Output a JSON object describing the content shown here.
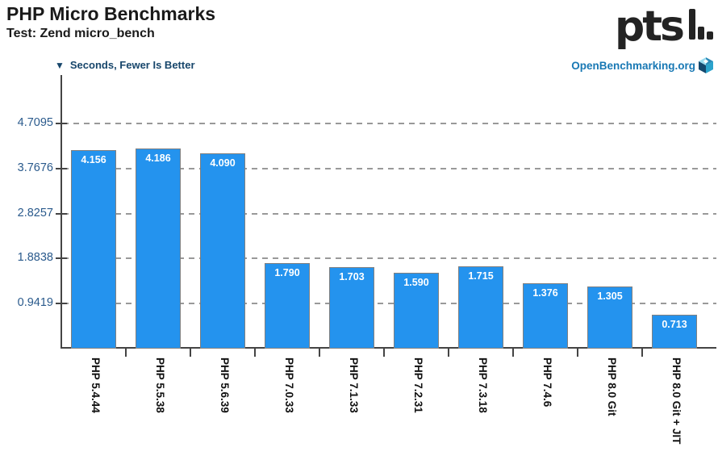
{
  "header": {
    "title": "PHP Micro Benchmarks",
    "subtitle": "Test: Zend micro_bench",
    "logo_text": "pts"
  },
  "legend": {
    "arrow_icon": "▼",
    "label": "Seconds, Fewer Is Better"
  },
  "watermark": {
    "label": "OpenBenchmarking.org",
    "icon": "cube-icon"
  },
  "colors": {
    "bar": "#2493ee",
    "bar_border": "#808080",
    "legend_text": "#17466b",
    "watermark_text": "#1878b4",
    "axis_label": "#2a5a8c",
    "gridline": "#999999",
    "axis": "#444444",
    "title_text": "#1a1a1a",
    "bar_value_text": "#ffffff"
  },
  "chart_data": {
    "type": "bar",
    "title": "PHP Micro Benchmarks",
    "subtitle": "Test: Zend micro_bench",
    "unit_label": "Seconds, Fewer Is Better",
    "lower_is_better": true,
    "categories": [
      "PHP 5.4.44",
      "PHP 5.5.38",
      "PHP 5.6.39",
      "PHP 7.0.33",
      "PHP 7.1.33",
      "PHP 7.2.31",
      "PHP 7.3.18",
      "PHP 7.4.6",
      "PHP 8.0 Git",
      "PHP 8.0 Git + JIT"
    ],
    "values": [
      4.156,
      4.186,
      4.09,
      1.79,
      1.703,
      1.59,
      1.715,
      1.376,
      1.305,
      0.713
    ],
    "value_labels": [
      "4.156",
      "4.186",
      "4.090",
      "1.790",
      "1.703",
      "1.590",
      "1.715",
      "1.376",
      "1.305",
      "0.713"
    ],
    "y_ticks": [
      0.9419,
      1.8838,
      2.8257,
      3.7676,
      4.7095
    ],
    "y_tick_labels": [
      "0.9419",
      "1.8838",
      "2.8257",
      "3.7676",
      "4.7095"
    ],
    "ylim": [
      0,
      5.2
    ],
    "xlabel": "",
    "ylabel": "Seconds",
    "grid": "horizontal-dashed",
    "legend_position": "top-left"
  }
}
